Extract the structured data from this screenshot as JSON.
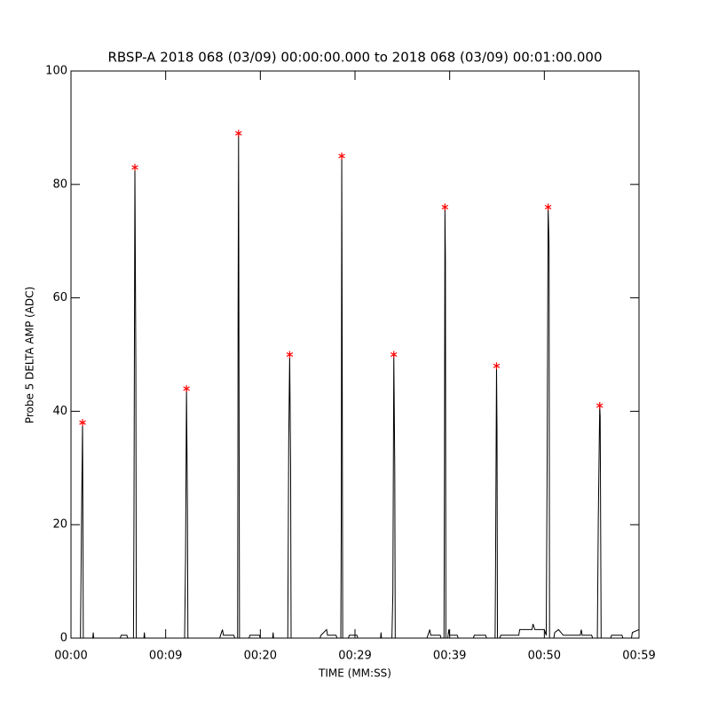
{
  "chart_data": {
    "type": "line",
    "title": "RBSP-A 2018 068 (03/09) 00:00:00.000 to 2018 068 (03/09) 00:01:00.000",
    "xlabel": "TIME (MM:SS)",
    "ylabel": "Probe 5 DELTA AMP (ADC)",
    "xlim": [
      0,
      60
    ],
    "ylim": [
      0,
      100
    ],
    "xticks": [
      {
        "value": 0,
        "label": "00:00"
      },
      {
        "value": 10,
        "label": "00:09"
      },
      {
        "value": 20,
        "label": "00:20"
      },
      {
        "value": 30,
        "label": "00:29"
      },
      {
        "value": 40,
        "label": "00:39"
      },
      {
        "value": 50,
        "label": "00:50"
      },
      {
        "value": 60,
        "label": "00:59"
      }
    ],
    "yticks": [
      0,
      20,
      40,
      60,
      80,
      100
    ],
    "series": [
      {
        "color": "#000000",
        "marker": "none",
        "x": [
          0,
          1.0,
          1.1,
          1.22,
          1.3,
          2.3,
          2.35,
          2.4,
          5.2,
          5.3,
          5.9,
          6.0,
          6.6,
          6.65,
          6.75,
          6.85,
          6.9,
          7.7,
          7.75,
          7.8,
          12.0,
          12.1,
          12.2,
          12.3,
          12.35,
          15.7,
          15.8,
          16.0,
          16.1,
          17.2,
          17.3,
          17.6,
          17.65,
          17.7,
          17.8,
          18.8,
          18.9,
          19.9,
          20.0,
          21.3,
          21.35,
          21.4,
          22.9,
          23.0,
          23.1,
          23.2,
          23.25,
          26.3,
          26.4,
          27.0,
          27.1,
          28.0,
          28.1,
          28.5,
          28.55,
          28.6,
          28.65,
          28.7,
          29.3,
          29.4,
          30.2,
          30.3,
          32.7,
          32.75,
          32.8,
          33.9,
          34.0,
          34.1,
          34.2,
          34.25,
          37.6,
          37.7,
          37.9,
          38.0,
          39.0,
          39.1,
          39.4,
          39.45,
          39.5,
          39.55,
          39.6,
          39.8,
          39.9,
          40.0,
          40.8,
          40.9,
          42.5,
          42.6,
          43.8,
          43.9,
          44.8,
          44.85,
          44.95,
          45.0,
          45.05,
          45.3,
          45.4,
          47.3,
          47.4,
          48.7,
          48.8,
          49.0,
          50.0,
          50.2,
          50.3,
          50.4,
          50.5,
          50.55,
          51.0,
          51.1,
          51.5,
          52.0,
          53.8,
          53.9,
          54.0,
          55.0,
          55.1,
          55.6,
          55.7,
          55.85,
          55.9,
          56.0,
          57.0,
          57.1,
          58.2,
          58.3,
          59.2,
          59.3,
          60
        ],
        "values": [
          0,
          0,
          19,
          38,
          0,
          0,
          1,
          0,
          0,
          0.5,
          0.5,
          0,
          0,
          20,
          83,
          48,
          0,
          0,
          1,
          0,
          0,
          14,
          44,
          23,
          0,
          0,
          0.5,
          1.5,
          0.5,
          0.5,
          0,
          0,
          58,
          89,
          0,
          0,
          0.5,
          0.5,
          0,
          0,
          1,
          0,
          0,
          35,
          50,
          30,
          0,
          0,
          0.5,
          1.5,
          0.5,
          0.5,
          0,
          0,
          21,
          85,
          49,
          0,
          0,
          0.5,
          0.5,
          0,
          0,
          1,
          0,
          0,
          8,
          50,
          30,
          0,
          0,
          0.5,
          1.5,
          0.5,
          0.5,
          0,
          0,
          29,
          76,
          67,
          0,
          0,
          1.5,
          0.5,
          0.5,
          0,
          0,
          0.5,
          0.5,
          0,
          0,
          13,
          48,
          37,
          0,
          0,
          0.5,
          0.5,
          1.5,
          1.5,
          2.5,
          1.5,
          1.5,
          0.5,
          32,
          76,
          69,
          0,
          0,
          1,
          1.5,
          0.5,
          0.5,
          1.5,
          0.5,
          0.5,
          0,
          0,
          21,
          41,
          39,
          0,
          0,
          0.5,
          0.5,
          0,
          0,
          1,
          1.5
        ]
      },
      {
        "color": "#ff0000",
        "marker": "asterisk",
        "x": [
          1.22,
          6.75,
          12.2,
          17.7,
          23.1,
          28.6,
          34.1,
          39.5,
          44.95,
          50.4,
          55.85
        ],
        "values": [
          38,
          83,
          44,
          89,
          50,
          85,
          50,
          76,
          48,
          76,
          41
        ]
      }
    ]
  }
}
